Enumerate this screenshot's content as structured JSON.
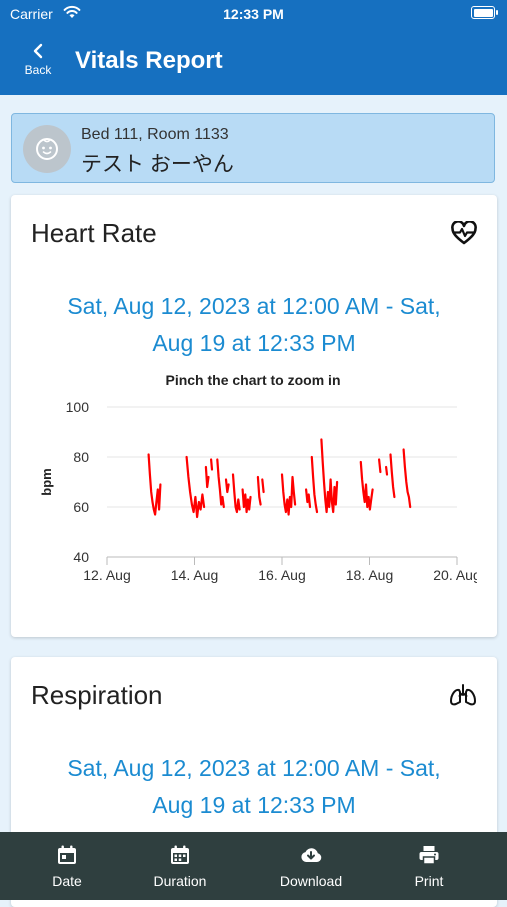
{
  "status": {
    "carrier": "Carrier",
    "time": "12:33 PM"
  },
  "nav": {
    "back_label": "Back",
    "title": "Vitals Report"
  },
  "patient": {
    "bed_room": "Bed 111, Room 1133",
    "name": "テスト おーやん"
  },
  "heart_rate": {
    "title": "Heart Rate",
    "icon": "heart-pulse-icon",
    "range_line1": "Sat, Aug 12, 2023 at 12:00 AM - Sat,",
    "range_line2": "Aug 19 at 12:33 PM"
  },
  "respiration": {
    "title": "Respiration",
    "icon": "lungs-icon",
    "range_line1": "Sat, Aug 12, 2023 at 12:00 AM - Sat,",
    "range_line2": "Aug 19 at 12:33 PM"
  },
  "chart_data": {
    "type": "line",
    "title": "Pinch the chart to zoom in",
    "xlabel": "",
    "ylabel": "bpm",
    "x_ticks": [
      "12. Aug",
      "14. Aug",
      "16. Aug",
      "18. Aug",
      "20. Aug"
    ],
    "y_ticks": [
      "40",
      "60",
      "80",
      "100"
    ],
    "xlim": [
      12,
      20
    ],
    "ylim": [
      40,
      100
    ],
    "grid": "horizontal",
    "color": "#ff0000",
    "series_segments": [
      [
        [
          12.95,
          81
        ],
        [
          12.98,
          73
        ],
        [
          13.01,
          66
        ],
        [
          13.04,
          62
        ],
        [
          13.07,
          59
        ],
        [
          13.1,
          57
        ],
        [
          13.13,
          62
        ],
        [
          13.16,
          67
        ],
        [
          13.19,
          59
        ],
        [
          13.22,
          69
        ]
      ],
      [
        [
          13.82,
          80
        ],
        [
          13.86,
          72
        ],
        [
          13.9,
          66
        ],
        [
          13.94,
          61
        ],
        [
          13.98,
          58
        ],
        [
          14.02,
          64
        ],
        [
          14.06,
          56
        ],
        [
          14.1,
          62
        ],
        [
          14.14,
          59
        ],
        [
          14.18,
          65
        ],
        [
          14.22,
          60
        ]
      ],
      [
        [
          14.26,
          76
        ],
        [
          14.29,
          68
        ],
        [
          14.32,
          72
        ]
      ],
      [
        [
          14.38,
          79
        ],
        [
          14.4,
          75
        ]
      ],
      [
        [
          14.52,
          79
        ],
        [
          14.55,
          72
        ],
        [
          14.58,
          67
        ],
        [
          14.61,
          61
        ],
        [
          14.64,
          64
        ],
        [
          14.67,
          60
        ]
      ],
      [
        [
          14.72,
          71
        ],
        [
          14.75,
          66
        ],
        [
          14.78,
          69
        ]
      ],
      [
        [
          14.88,
          73
        ],
        [
          14.91,
          66
        ],
        [
          14.94,
          60
        ],
        [
          14.97,
          58
        ],
        [
          15.0,
          63
        ],
        [
          15.03,
          59
        ]
      ],
      [
        [
          15.1,
          67
        ],
        [
          15.13,
          60
        ],
        [
          15.16,
          65
        ],
        [
          15.19,
          58
        ],
        [
          15.22,
          63
        ],
        [
          15.25,
          59
        ],
        [
          15.28,
          64
        ]
      ],
      [
        [
          15.45,
          72
        ],
        [
          15.48,
          64
        ],
        [
          15.51,
          61
        ]
      ],
      [
        [
          15.55,
          71
        ],
        [
          15.58,
          66
        ]
      ],
      [
        [
          16.0,
          73
        ],
        [
          16.03,
          66
        ],
        [
          16.06,
          61
        ],
        [
          16.09,
          58
        ],
        [
          16.12,
          63
        ],
        [
          16.15,
          57
        ],
        [
          16.18,
          64
        ],
        [
          16.21,
          60
        ],
        [
          16.24,
          72
        ],
        [
          16.27,
          66
        ],
        [
          16.3,
          61
        ]
      ],
      [
        [
          16.55,
          67
        ],
        [
          16.58,
          62
        ],
        [
          16.61,
          65
        ],
        [
          16.64,
          60
        ]
      ],
      [
        [
          16.68,
          80
        ],
        [
          16.71,
          72
        ],
        [
          16.74,
          65
        ],
        [
          16.77,
          61
        ],
        [
          16.8,
          58
        ]
      ],
      [
        [
          16.9,
          87
        ],
        [
          16.93,
          78
        ],
        [
          16.96,
          70
        ],
        [
          16.99,
          63
        ],
        [
          17.02,
          58
        ],
        [
          17.05,
          66
        ],
        [
          17.08,
          60
        ],
        [
          17.11,
          71
        ],
        [
          17.14,
          62
        ],
        [
          17.17,
          58
        ],
        [
          17.2,
          68
        ],
        [
          17.23,
          61
        ],
        [
          17.26,
          70
        ]
      ],
      [
        [
          17.8,
          78
        ],
        [
          17.83,
          71
        ],
        [
          17.86,
          66
        ],
        [
          17.89,
          62
        ],
        [
          17.92,
          69
        ],
        [
          17.95,
          60
        ],
        [
          17.98,
          64
        ],
        [
          18.01,
          59
        ],
        [
          18.04,
          63
        ],
        [
          18.07,
          67
        ]
      ],
      [
        [
          18.22,
          79
        ],
        [
          18.25,
          74
        ]
      ],
      [
        [
          18.38,
          76
        ],
        [
          18.4,
          73
        ]
      ],
      [
        [
          18.48,
          81
        ],
        [
          18.51,
          74
        ],
        [
          18.54,
          68
        ],
        [
          18.57,
          64
        ]
      ],
      [
        [
          18.78,
          83
        ],
        [
          18.81,
          76
        ],
        [
          18.84,
          70
        ],
        [
          18.87,
          66
        ],
        [
          18.9,
          64
        ],
        [
          18.93,
          60
        ]
      ]
    ]
  },
  "tabs": [
    {
      "label": "Date",
      "icon": "calendar-icon"
    },
    {
      "label": "Duration",
      "icon": "calendar-range-icon"
    },
    {
      "label": "Download",
      "icon": "cloud-download-icon"
    },
    {
      "label": "Print",
      "icon": "printer-icon"
    }
  ]
}
